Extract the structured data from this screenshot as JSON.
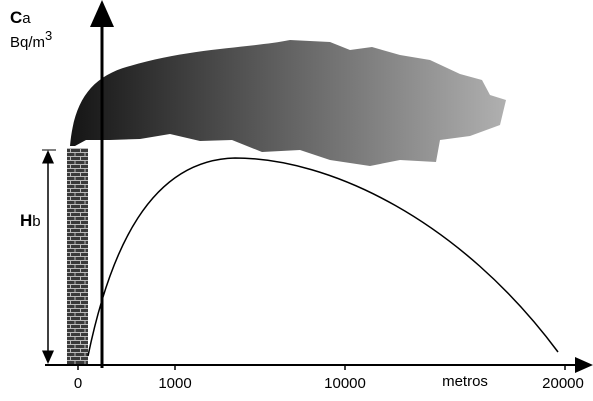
{
  "y_axis": {
    "symbol": "C",
    "subscript": "a",
    "unit": "Bq/m",
    "unit_exponent": "3"
  },
  "height_label": {
    "symbol": "H",
    "subscript": "b"
  },
  "x_axis": {
    "ticks": [
      "0",
      "1000",
      "10000",
      "20000"
    ],
    "unit": "metros"
  }
}
